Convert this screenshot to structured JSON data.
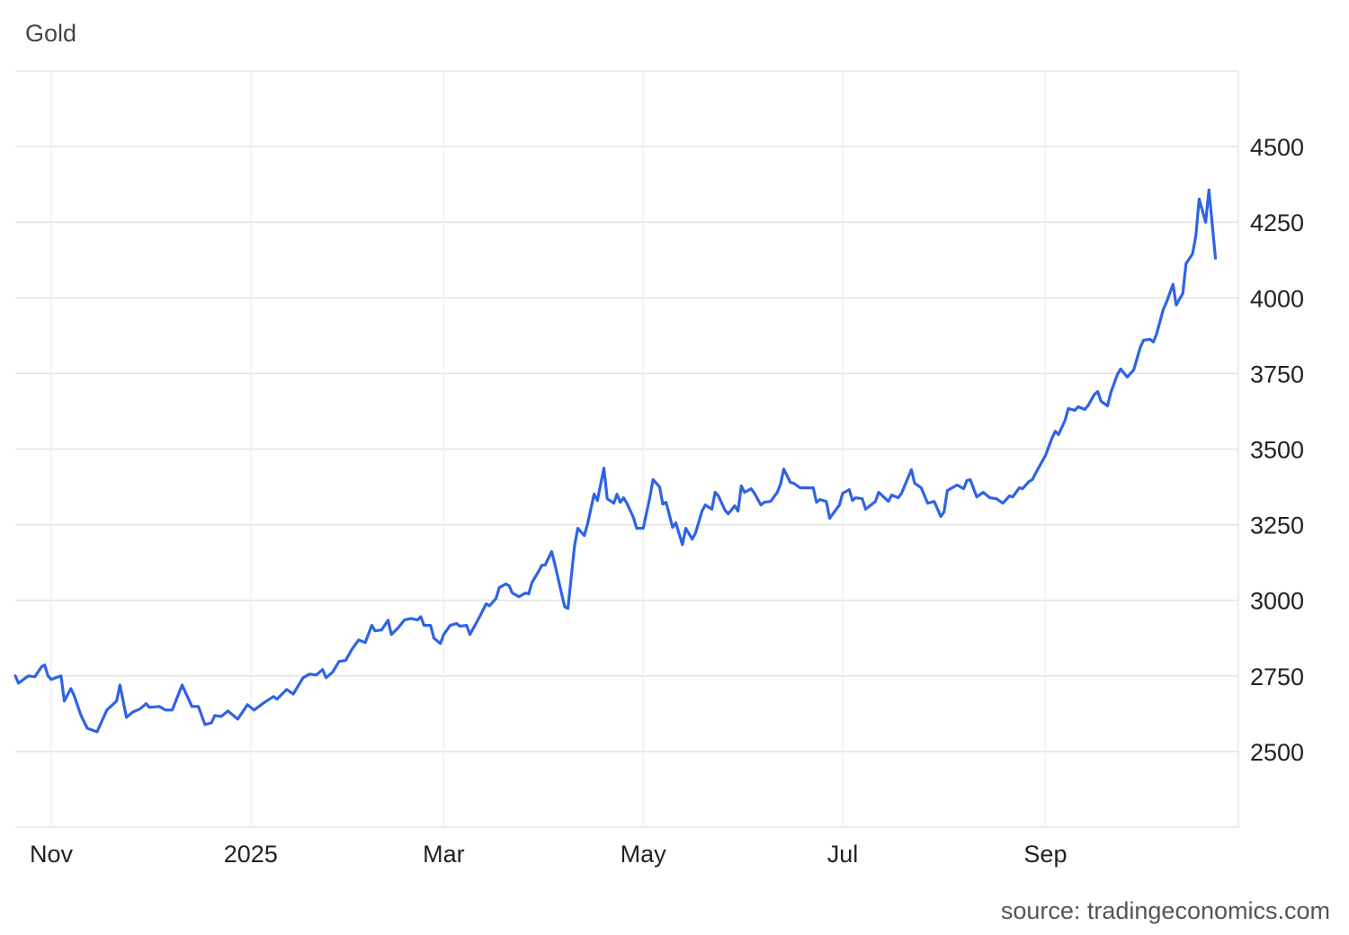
{
  "chart_data": {
    "type": "line",
    "title": "Gold",
    "source": "source: tradingeconomics.com",
    "xlabel": "",
    "ylabel": "",
    "xlim": [
      "2024-10-21",
      "2025-10-30"
    ],
    "ylim": [
      2250,
      4750
    ],
    "grid": true,
    "line_color": "#2f63e6",
    "x_ticks": [
      {
        "date": "2024-11-01",
        "label": "Nov"
      },
      {
        "date": "2025-01-01",
        "label": "2025"
      },
      {
        "date": "2025-03-01",
        "label": "Mar"
      },
      {
        "date": "2025-05-01",
        "label": "May"
      },
      {
        "date": "2025-07-01",
        "label": "Jul"
      },
      {
        "date": "2025-09-01",
        "label": "Sep"
      }
    ],
    "y_ticks": [
      2500,
      2750,
      3000,
      3250,
      3500,
      3750,
      4000,
      4250,
      4500
    ],
    "y_tick_labels": [
      "2500",
      "2750",
      "3000",
      "3250",
      "3500",
      "3750",
      "4000",
      "4250",
      "4500"
    ],
    "points": [
      [
        "2024-10-21",
        2750
      ],
      [
        "2024-10-22",
        2726
      ],
      [
        "2024-10-25",
        2750
      ],
      [
        "2024-10-27",
        2747
      ],
      [
        "2024-10-29",
        2780
      ],
      [
        "2024-10-30",
        2786
      ],
      [
        "2024-10-31",
        2750
      ],
      [
        "2024-11-01",
        2738
      ],
      [
        "2024-11-04",
        2750
      ],
      [
        "2024-11-05",
        2667
      ],
      [
        "2024-11-07",
        2708
      ],
      [
        "2024-11-08",
        2685
      ],
      [
        "2024-11-10",
        2622
      ],
      [
        "2024-11-12",
        2577
      ],
      [
        "2024-11-15",
        2565
      ],
      [
        "2024-11-17",
        2613
      ],
      [
        "2024-11-18",
        2637
      ],
      [
        "2024-11-21",
        2667
      ],
      [
        "2024-11-22",
        2720
      ],
      [
        "2024-11-24",
        2613
      ],
      [
        "2024-11-26",
        2631
      ],
      [
        "2024-11-28",
        2640
      ],
      [
        "2024-11-30",
        2658
      ],
      [
        "2024-12-01",
        2646
      ],
      [
        "2024-12-04",
        2649
      ],
      [
        "2024-12-06",
        2637
      ],
      [
        "2024-12-08",
        2637
      ],
      [
        "2024-12-11",
        2720
      ],
      [
        "2024-12-14",
        2649
      ],
      [
        "2024-12-16",
        2649
      ],
      [
        "2024-12-18",
        2589
      ],
      [
        "2024-12-20",
        2595
      ],
      [
        "2024-12-21",
        2619
      ],
      [
        "2024-12-23",
        2616
      ],
      [
        "2024-12-25",
        2634
      ],
      [
        "2024-12-28",
        2607
      ],
      [
        "2024-12-31",
        2655
      ],
      [
        "2025-01-02",
        2637
      ],
      [
        "2025-01-05",
        2661
      ],
      [
        "2025-01-08",
        2682
      ],
      [
        "2025-01-09",
        2673
      ],
      [
        "2025-01-12",
        2705
      ],
      [
        "2025-01-14",
        2690
      ],
      [
        "2025-01-17",
        2744
      ],
      [
        "2025-01-19",
        2756
      ],
      [
        "2025-01-21",
        2753
      ],
      [
        "2025-01-23",
        2771
      ],
      [
        "2025-01-24",
        2744
      ],
      [
        "2025-01-26",
        2762
      ],
      [
        "2025-01-28",
        2798
      ],
      [
        "2025-01-30",
        2801
      ],
      [
        "2025-02-01",
        2839
      ],
      [
        "2025-02-03",
        2869
      ],
      [
        "2025-02-05",
        2860
      ],
      [
        "2025-02-07",
        2917
      ],
      [
        "2025-02-08",
        2899
      ],
      [
        "2025-02-10",
        2902
      ],
      [
        "2025-02-12",
        2934
      ],
      [
        "2025-02-13",
        2887
      ],
      [
        "2025-02-15",
        2908
      ],
      [
        "2025-02-17",
        2935
      ],
      [
        "2025-02-19",
        2940
      ],
      [
        "2025-02-21",
        2935
      ],
      [
        "2025-02-22",
        2946
      ],
      [
        "2025-02-23",
        2917
      ],
      [
        "2025-02-25",
        2917
      ],
      [
        "2025-02-26",
        2875
      ],
      [
        "2025-02-28",
        2857
      ],
      [
        "2025-03-01",
        2887
      ],
      [
        "2025-03-03",
        2917
      ],
      [
        "2025-03-05",
        2923
      ],
      [
        "2025-03-06",
        2914
      ],
      [
        "2025-03-08",
        2917
      ],
      [
        "2025-03-09",
        2887
      ],
      [
        "2025-03-11",
        2926
      ],
      [
        "2025-03-12",
        2946
      ],
      [
        "2025-03-14",
        2988
      ],
      [
        "2025-03-15",
        2982
      ],
      [
        "2025-03-17",
        3006
      ],
      [
        "2025-03-18",
        3042
      ],
      [
        "2025-03-20",
        3054
      ],
      [
        "2025-03-21",
        3048
      ],
      [
        "2025-03-22",
        3024
      ],
      [
        "2025-03-24",
        3012
      ],
      [
        "2025-03-26",
        3024
      ],
      [
        "2025-03-27",
        3021
      ],
      [
        "2025-03-28",
        3059
      ],
      [
        "2025-03-30",
        3095
      ],
      [
        "2025-03-31",
        3116
      ],
      [
        "2025-04-01",
        3116
      ],
      [
        "2025-04-03",
        3161
      ],
      [
        "2025-04-04",
        3119
      ],
      [
        "2025-04-06",
        3024
      ],
      [
        "2025-04-07",
        2979
      ],
      [
        "2025-04-08",
        2973
      ],
      [
        "2025-04-10",
        3179
      ],
      [
        "2025-04-11",
        3238
      ],
      [
        "2025-04-13",
        3214
      ],
      [
        "2025-04-14",
        3253
      ],
      [
        "2025-04-16",
        3351
      ],
      [
        "2025-04-17",
        3330
      ],
      [
        "2025-04-19",
        3437
      ],
      [
        "2025-04-20",
        3336
      ],
      [
        "2025-04-22",
        3321
      ],
      [
        "2025-04-23",
        3351
      ],
      [
        "2025-04-24",
        3324
      ],
      [
        "2025-04-25",
        3339
      ],
      [
        "2025-04-26",
        3321
      ],
      [
        "2025-04-28",
        3274
      ],
      [
        "2025-04-29",
        3238
      ],
      [
        "2025-05-01",
        3238
      ],
      [
        "2025-05-03",
        3339
      ],
      [
        "2025-05-04",
        3399
      ],
      [
        "2025-05-06",
        3375
      ],
      [
        "2025-05-07",
        3318
      ],
      [
        "2025-05-08",
        3324
      ],
      [
        "2025-05-10",
        3241
      ],
      [
        "2025-05-11",
        3256
      ],
      [
        "2025-05-13",
        3184
      ],
      [
        "2025-05-14",
        3238
      ],
      [
        "2025-05-16",
        3202
      ],
      [
        "2025-05-17",
        3223
      ],
      [
        "2025-05-19",
        3295
      ],
      [
        "2025-05-20",
        3315
      ],
      [
        "2025-05-22",
        3301
      ],
      [
        "2025-05-23",
        3357
      ],
      [
        "2025-05-24",
        3345
      ],
      [
        "2025-05-26",
        3298
      ],
      [
        "2025-05-27",
        3286
      ],
      [
        "2025-05-29",
        3312
      ],
      [
        "2025-05-30",
        3295
      ],
      [
        "2025-05-31",
        3378
      ],
      [
        "2025-06-01",
        3357
      ],
      [
        "2025-06-03",
        3369
      ],
      [
        "2025-06-04",
        3354
      ],
      [
        "2025-06-06",
        3315
      ],
      [
        "2025-06-07",
        3324
      ],
      [
        "2025-06-09",
        3327
      ],
      [
        "2025-06-11",
        3357
      ],
      [
        "2025-06-12",
        3384
      ],
      [
        "2025-06-13",
        3434
      ],
      [
        "2025-06-15",
        3390
      ],
      [
        "2025-06-16",
        3387
      ],
      [
        "2025-06-18",
        3372
      ],
      [
        "2025-06-22",
        3372
      ],
      [
        "2025-06-23",
        3324
      ],
      [
        "2025-06-24",
        3333
      ],
      [
        "2025-06-26",
        3327
      ],
      [
        "2025-06-27",
        3271
      ],
      [
        "2025-06-30",
        3315
      ],
      [
        "2025-07-01",
        3354
      ],
      [
        "2025-07-03",
        3366
      ],
      [
        "2025-07-04",
        3330
      ],
      [
        "2025-07-05",
        3339
      ],
      [
        "2025-07-07",
        3336
      ],
      [
        "2025-07-08",
        3301
      ],
      [
        "2025-07-11",
        3327
      ],
      [
        "2025-07-12",
        3357
      ],
      [
        "2025-07-15",
        3327
      ],
      [
        "2025-07-16",
        3348
      ],
      [
        "2025-07-18",
        3339
      ],
      [
        "2025-07-19",
        3354
      ],
      [
        "2025-07-22",
        3432
      ],
      [
        "2025-07-23",
        3387
      ],
      [
        "2025-07-25",
        3372
      ],
      [
        "2025-07-27",
        3321
      ],
      [
        "2025-07-29",
        3327
      ],
      [
        "2025-07-31",
        3277
      ],
      [
        "2025-08-01",
        3292
      ],
      [
        "2025-08-02",
        3363
      ],
      [
        "2025-08-04",
        3375
      ],
      [
        "2025-08-05",
        3381
      ],
      [
        "2025-08-07",
        3369
      ],
      [
        "2025-08-08",
        3396
      ],
      [
        "2025-08-09",
        3399
      ],
      [
        "2025-08-11",
        3342
      ],
      [
        "2025-08-13",
        3357
      ],
      [
        "2025-08-15",
        3339
      ],
      [
        "2025-08-17",
        3336
      ],
      [
        "2025-08-19",
        3321
      ],
      [
        "2025-08-21",
        3345
      ],
      [
        "2025-08-22",
        3342
      ],
      [
        "2025-08-24",
        3372
      ],
      [
        "2025-08-25",
        3369
      ],
      [
        "2025-08-27",
        3393
      ],
      [
        "2025-08-28",
        3399
      ],
      [
        "2025-08-29",
        3420
      ],
      [
        "2025-08-30",
        3440
      ],
      [
        "2025-09-01",
        3479
      ],
      [
        "2025-09-03",
        3536
      ],
      [
        "2025-09-04",
        3559
      ],
      [
        "2025-09-05",
        3548
      ],
      [
        "2025-09-07",
        3595
      ],
      [
        "2025-09-08",
        3634
      ],
      [
        "2025-09-10",
        3628
      ],
      [
        "2025-09-11",
        3640
      ],
      [
        "2025-09-13",
        3631
      ],
      [
        "2025-09-14",
        3643
      ],
      [
        "2025-09-16",
        3681
      ],
      [
        "2025-09-17",
        3690
      ],
      [
        "2025-09-18",
        3658
      ],
      [
        "2025-09-20",
        3643
      ],
      [
        "2025-09-21",
        3687
      ],
      [
        "2025-09-23",
        3747
      ],
      [
        "2025-09-24",
        3765
      ],
      [
        "2025-09-26",
        3738
      ],
      [
        "2025-09-28",
        3762
      ],
      [
        "2025-09-30",
        3836
      ],
      [
        "2025-10-01",
        3860
      ],
      [
        "2025-10-03",
        3863
      ],
      [
        "2025-10-04",
        3854
      ],
      [
        "2025-10-05",
        3881
      ],
      [
        "2025-10-07",
        3961
      ],
      [
        "2025-10-08",
        3985
      ],
      [
        "2025-10-10",
        4045
      ],
      [
        "2025-10-11",
        3976
      ],
      [
        "2025-10-13",
        4015
      ],
      [
        "2025-10-14",
        4113
      ],
      [
        "2025-10-16",
        4146
      ],
      [
        "2025-10-17",
        4205
      ],
      [
        "2025-10-18",
        4327
      ],
      [
        "2025-10-20",
        4250
      ],
      [
        "2025-10-21",
        4357
      ],
      [
        "2025-10-23",
        4131
      ]
    ]
  }
}
